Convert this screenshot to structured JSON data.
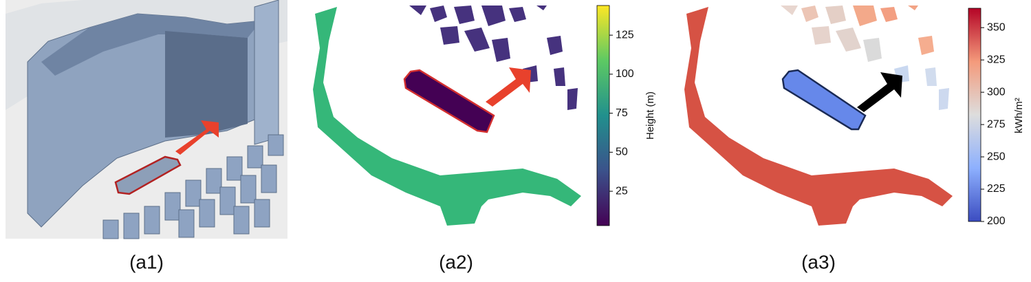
{
  "panels": [
    {
      "label": "(a1)"
    },
    {
      "label": "(a2)",
      "colorbar": {
        "label": "Height (m)",
        "lim": [
          3,
          144
        ],
        "ticks": [
          25,
          50,
          75,
          100,
          125
        ]
      }
    },
    {
      "label": "(a3)",
      "colorbar": {
        "label": "kWh/m²",
        "lim": [
          200,
          365
        ],
        "ticks": [
          200,
          225,
          250,
          275,
          300,
          325,
          350
        ]
      }
    }
  ]
}
